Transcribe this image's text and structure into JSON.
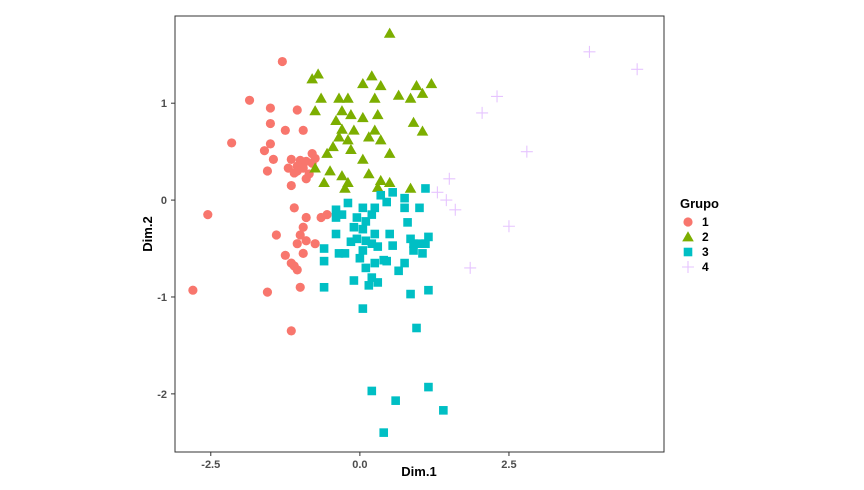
{
  "chart_data": {
    "type": "scatter",
    "title": "",
    "xlabel": "Dim.1",
    "ylabel": "Dim.2",
    "xlim": [
      -3.1,
      5.1
    ],
    "ylim": [
      -2.6,
      1.9
    ],
    "x_ticks": [
      {
        "value": -2.5,
        "label": "-2.5"
      },
      {
        "value": 0,
        "label": "0.0"
      },
      {
        "value": 2.5,
        "label": "2.5"
      }
    ],
    "y_ticks": [
      {
        "value": 1,
        "label": "1"
      },
      {
        "value": 0,
        "label": "0"
      },
      {
        "value": -1,
        "label": "-1"
      },
      {
        "value": -2,
        "label": "-2"
      }
    ],
    "grid": false,
    "legend": {
      "title": "Grupo",
      "position": "right"
    },
    "series": [
      {
        "name": "1",
        "shape": "circle",
        "color": "#F8766D",
        "points": [
          [
            -1.3,
            1.43
          ],
          [
            -1.85,
            1.03
          ],
          [
            -1.5,
            0.95
          ],
          [
            -1.05,
            0.93
          ],
          [
            -1.5,
            0.79
          ],
          [
            -1.25,
            0.72
          ],
          [
            -0.95,
            0.72
          ],
          [
            -2.15,
            0.59
          ],
          [
            -1.5,
            0.58
          ],
          [
            -1.6,
            0.51
          ],
          [
            -0.8,
            0.48
          ],
          [
            -0.75,
            0.43
          ],
          [
            -1.45,
            0.42
          ],
          [
            -1.15,
            0.42
          ],
          [
            -1.0,
            0.41
          ],
          [
            -0.9,
            0.4
          ],
          [
            -0.8,
            0.38
          ],
          [
            -1.05,
            0.35
          ],
          [
            -0.95,
            0.33
          ],
          [
            -1.2,
            0.33
          ],
          [
            -1.05,
            0.3
          ],
          [
            -1.1,
            0.28
          ],
          [
            -1.55,
            0.3
          ],
          [
            -0.85,
            0.27
          ],
          [
            -0.9,
            0.22
          ],
          [
            -1.15,
            0.15
          ],
          [
            -2.55,
            -0.15
          ],
          [
            -1.1,
            -0.08
          ],
          [
            -0.55,
            -0.15
          ],
          [
            -0.65,
            -0.18
          ],
          [
            -0.9,
            -0.18
          ],
          [
            -0.95,
            -0.28
          ],
          [
            -1.4,
            -0.36
          ],
          [
            -1.0,
            -0.36
          ],
          [
            -0.9,
            -0.42
          ],
          [
            -1.05,
            -0.45
          ],
          [
            -0.75,
            -0.45
          ],
          [
            -0.95,
            -0.55
          ],
          [
            -1.25,
            -0.57
          ],
          [
            -1.15,
            -0.65
          ],
          [
            -1.1,
            -0.68
          ],
          [
            -1.05,
            -0.72
          ],
          [
            -1.55,
            -0.95
          ],
          [
            -1.0,
            -0.9
          ],
          [
            -2.8,
            -0.93
          ],
          [
            -1.15,
            -1.35
          ]
        ]
      },
      {
        "name": "2",
        "shape": "triangle",
        "color": "#7CAE00",
        "points": [
          [
            0.5,
            1.72
          ],
          [
            -0.7,
            1.3
          ],
          [
            -0.8,
            1.25
          ],
          [
            0.2,
            1.28
          ],
          [
            0.35,
            1.18
          ],
          [
            1.2,
            1.2
          ],
          [
            0.05,
            1.2
          ],
          [
            0.95,
            1.18
          ],
          [
            1.05,
            1.1
          ],
          [
            0.65,
            1.08
          ],
          [
            -0.65,
            1.05
          ],
          [
            -0.35,
            1.05
          ],
          [
            -0.2,
            1.05
          ],
          [
            0.25,
            1.05
          ],
          [
            0.85,
            1.05
          ],
          [
            -0.75,
            0.92
          ],
          [
            -0.3,
            0.92
          ],
          [
            -0.15,
            0.88
          ],
          [
            0.05,
            0.85
          ],
          [
            0.3,
            0.88
          ],
          [
            -0.4,
            0.82
          ],
          [
            0.9,
            0.8
          ],
          [
            -0.3,
            0.73
          ],
          [
            -0.1,
            0.72
          ],
          [
            0.25,
            0.72
          ],
          [
            1.05,
            0.71
          ],
          [
            -0.35,
            0.65
          ],
          [
            -0.2,
            0.62
          ],
          [
            0.15,
            0.65
          ],
          [
            0.35,
            0.62
          ],
          [
            -0.45,
            0.55
          ],
          [
            -0.15,
            0.52
          ],
          [
            0.5,
            0.48
          ],
          [
            -0.55,
            0.48
          ],
          [
            0.05,
            0.42
          ],
          [
            -0.75,
            0.33
          ],
          [
            -0.5,
            0.3
          ],
          [
            -0.3,
            0.25
          ],
          [
            0.15,
            0.27
          ],
          [
            -0.6,
            0.18
          ],
          [
            -0.2,
            0.18
          ],
          [
            0.35,
            0.2
          ],
          [
            0.5,
            0.18
          ],
          [
            0.3,
            0.13
          ],
          [
            -0.25,
            0.12
          ],
          [
            0.85,
            0.12
          ]
        ]
      },
      {
        "name": "3",
        "shape": "square",
        "color": "#00BFC4",
        "points": [
          [
            0.55,
            0.08
          ],
          [
            1.1,
            0.12
          ],
          [
            0.35,
            0.05
          ],
          [
            -0.2,
            -0.03
          ],
          [
            0.45,
            -0.02
          ],
          [
            0.75,
            0.02
          ],
          [
            0.75,
            -0.08
          ],
          [
            1.0,
            -0.08
          ],
          [
            -0.4,
            -0.1
          ],
          [
            0.05,
            -0.08
          ],
          [
            0.25,
            -0.08
          ],
          [
            -0.3,
            -0.15
          ],
          [
            0.2,
            -0.15
          ],
          [
            -0.4,
            -0.18
          ],
          [
            -0.05,
            -0.18
          ],
          [
            0.1,
            -0.22
          ],
          [
            0.8,
            -0.23
          ],
          [
            -0.1,
            -0.28
          ],
          [
            0.05,
            -0.3
          ],
          [
            -0.4,
            -0.35
          ],
          [
            0.25,
            -0.35
          ],
          [
            0.5,
            -0.35
          ],
          [
            1.15,
            -0.38
          ],
          [
            -0.05,
            -0.4
          ],
          [
            0.85,
            -0.4
          ],
          [
            0.1,
            -0.42
          ],
          [
            -0.15,
            -0.43
          ],
          [
            0.2,
            -0.45
          ],
          [
            0.9,
            -0.45
          ],
          [
            1.0,
            -0.45
          ],
          [
            1.1,
            -0.45
          ],
          [
            -0.6,
            -0.5
          ],
          [
            0.3,
            -0.48
          ],
          [
            0.55,
            -0.47
          ],
          [
            -0.35,
            -0.55
          ],
          [
            -0.25,
            -0.55
          ],
          [
            0.05,
            -0.52
          ],
          [
            0.9,
            -0.52
          ],
          [
            1.05,
            -0.55
          ],
          [
            -0.6,
            -0.63
          ],
          [
            0.0,
            -0.6
          ],
          [
            0.4,
            -0.62
          ],
          [
            0.45,
            -0.63
          ],
          [
            0.25,
            -0.65
          ],
          [
            0.75,
            -0.65
          ],
          [
            0.1,
            -0.7
          ],
          [
            0.65,
            -0.73
          ],
          [
            0.2,
            -0.8
          ],
          [
            -0.1,
            -0.83
          ],
          [
            0.3,
            -0.85
          ],
          [
            0.15,
            -0.88
          ],
          [
            -0.6,
            -0.9
          ],
          [
            1.15,
            -0.93
          ],
          [
            0.85,
            -0.97
          ],
          [
            0.05,
            -1.12
          ],
          [
            0.95,
            -1.32
          ],
          [
            0.2,
            -1.97
          ],
          [
            1.15,
            -1.93
          ],
          [
            0.6,
            -2.07
          ],
          [
            1.4,
            -2.17
          ],
          [
            0.4,
            -2.4
          ]
        ]
      },
      {
        "name": "4",
        "shape": "cross",
        "color": "#C77CFF",
        "points": [
          [
            3.85,
            1.53
          ],
          [
            4.65,
            1.35
          ],
          [
            2.3,
            1.07
          ],
          [
            2.05,
            0.9
          ],
          [
            2.8,
            0.5
          ],
          [
            1.5,
            0.22
          ],
          [
            1.3,
            0.08
          ],
          [
            1.45,
            0.0
          ],
          [
            1.6,
            -0.1
          ],
          [
            2.5,
            -0.27
          ],
          [
            1.85,
            -0.7
          ]
        ]
      }
    ]
  }
}
